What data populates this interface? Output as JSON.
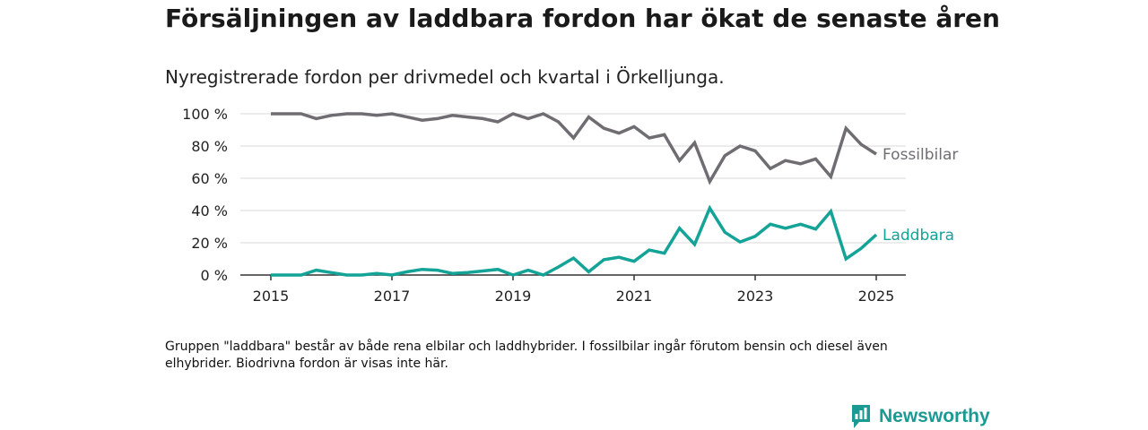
{
  "chart_data": {
    "type": "line",
    "title": "Försäljningen av laddbara fordon har ökat de senaste åren",
    "subtitle": "Nyregistrerade fordon per drivmedel och kvartal i Örkelljunga.",
    "note": "Gruppen \"laddbara\" består av både rena elbilar och laddhybrider. I fossilbilar ingår förutom bensin och diesel även elhybrider. Biodrivna fordon är visas inte här.",
    "x_start": "2015 Q1",
    "x_ticks": [
      2015,
      2017,
      2019,
      2021,
      2023,
      2025
    ],
    "y_ticks": [
      0,
      20,
      40,
      60,
      80,
      100
    ],
    "y_tick_labels": [
      "0 %",
      "20 %",
      "40 %",
      "60 %",
      "80 %",
      "100 %"
    ],
    "ylim": [
      0,
      100
    ],
    "xlim": [
      2015.0,
      2025.0
    ],
    "grid": "horizontal",
    "legend": "direct labels at line ends",
    "series": [
      {
        "name": "Fossilbilar",
        "color": "#6f6d72",
        "values": [
          100,
          100,
          100,
          97,
          99,
          100,
          100,
          99,
          100,
          98,
          96,
          97,
          99,
          98,
          97,
          95,
          100,
          97,
          100,
          95,
          85,
          98,
          91,
          88,
          92,
          85,
          87,
          71,
          82,
          58,
          74,
          80,
          77,
          66,
          71,
          69,
          72,
          61,
          91,
          81,
          75
        ]
      },
      {
        "name": "Laddbara",
        "color": "#14a397",
        "values": [
          0,
          0,
          0,
          3,
          1.5,
          0,
          0,
          1,
          0,
          2,
          3.5,
          3,
          1,
          1.5,
          2.5,
          3.5,
          0,
          3,
          0,
          5,
          10.5,
          2,
          9.5,
          11,
          8.5,
          15.5,
          13.5,
          29,
          19,
          41.5,
          26.5,
          20.5,
          24,
          31.5,
          29,
          31.5,
          28.5,
          39.5,
          10,
          16.5,
          25
        ]
      }
    ]
  },
  "brand": {
    "name": "Newsworthy",
    "logo_icon": "newsworthy-chart-bubble-icon",
    "color": "#1a9a93"
  }
}
